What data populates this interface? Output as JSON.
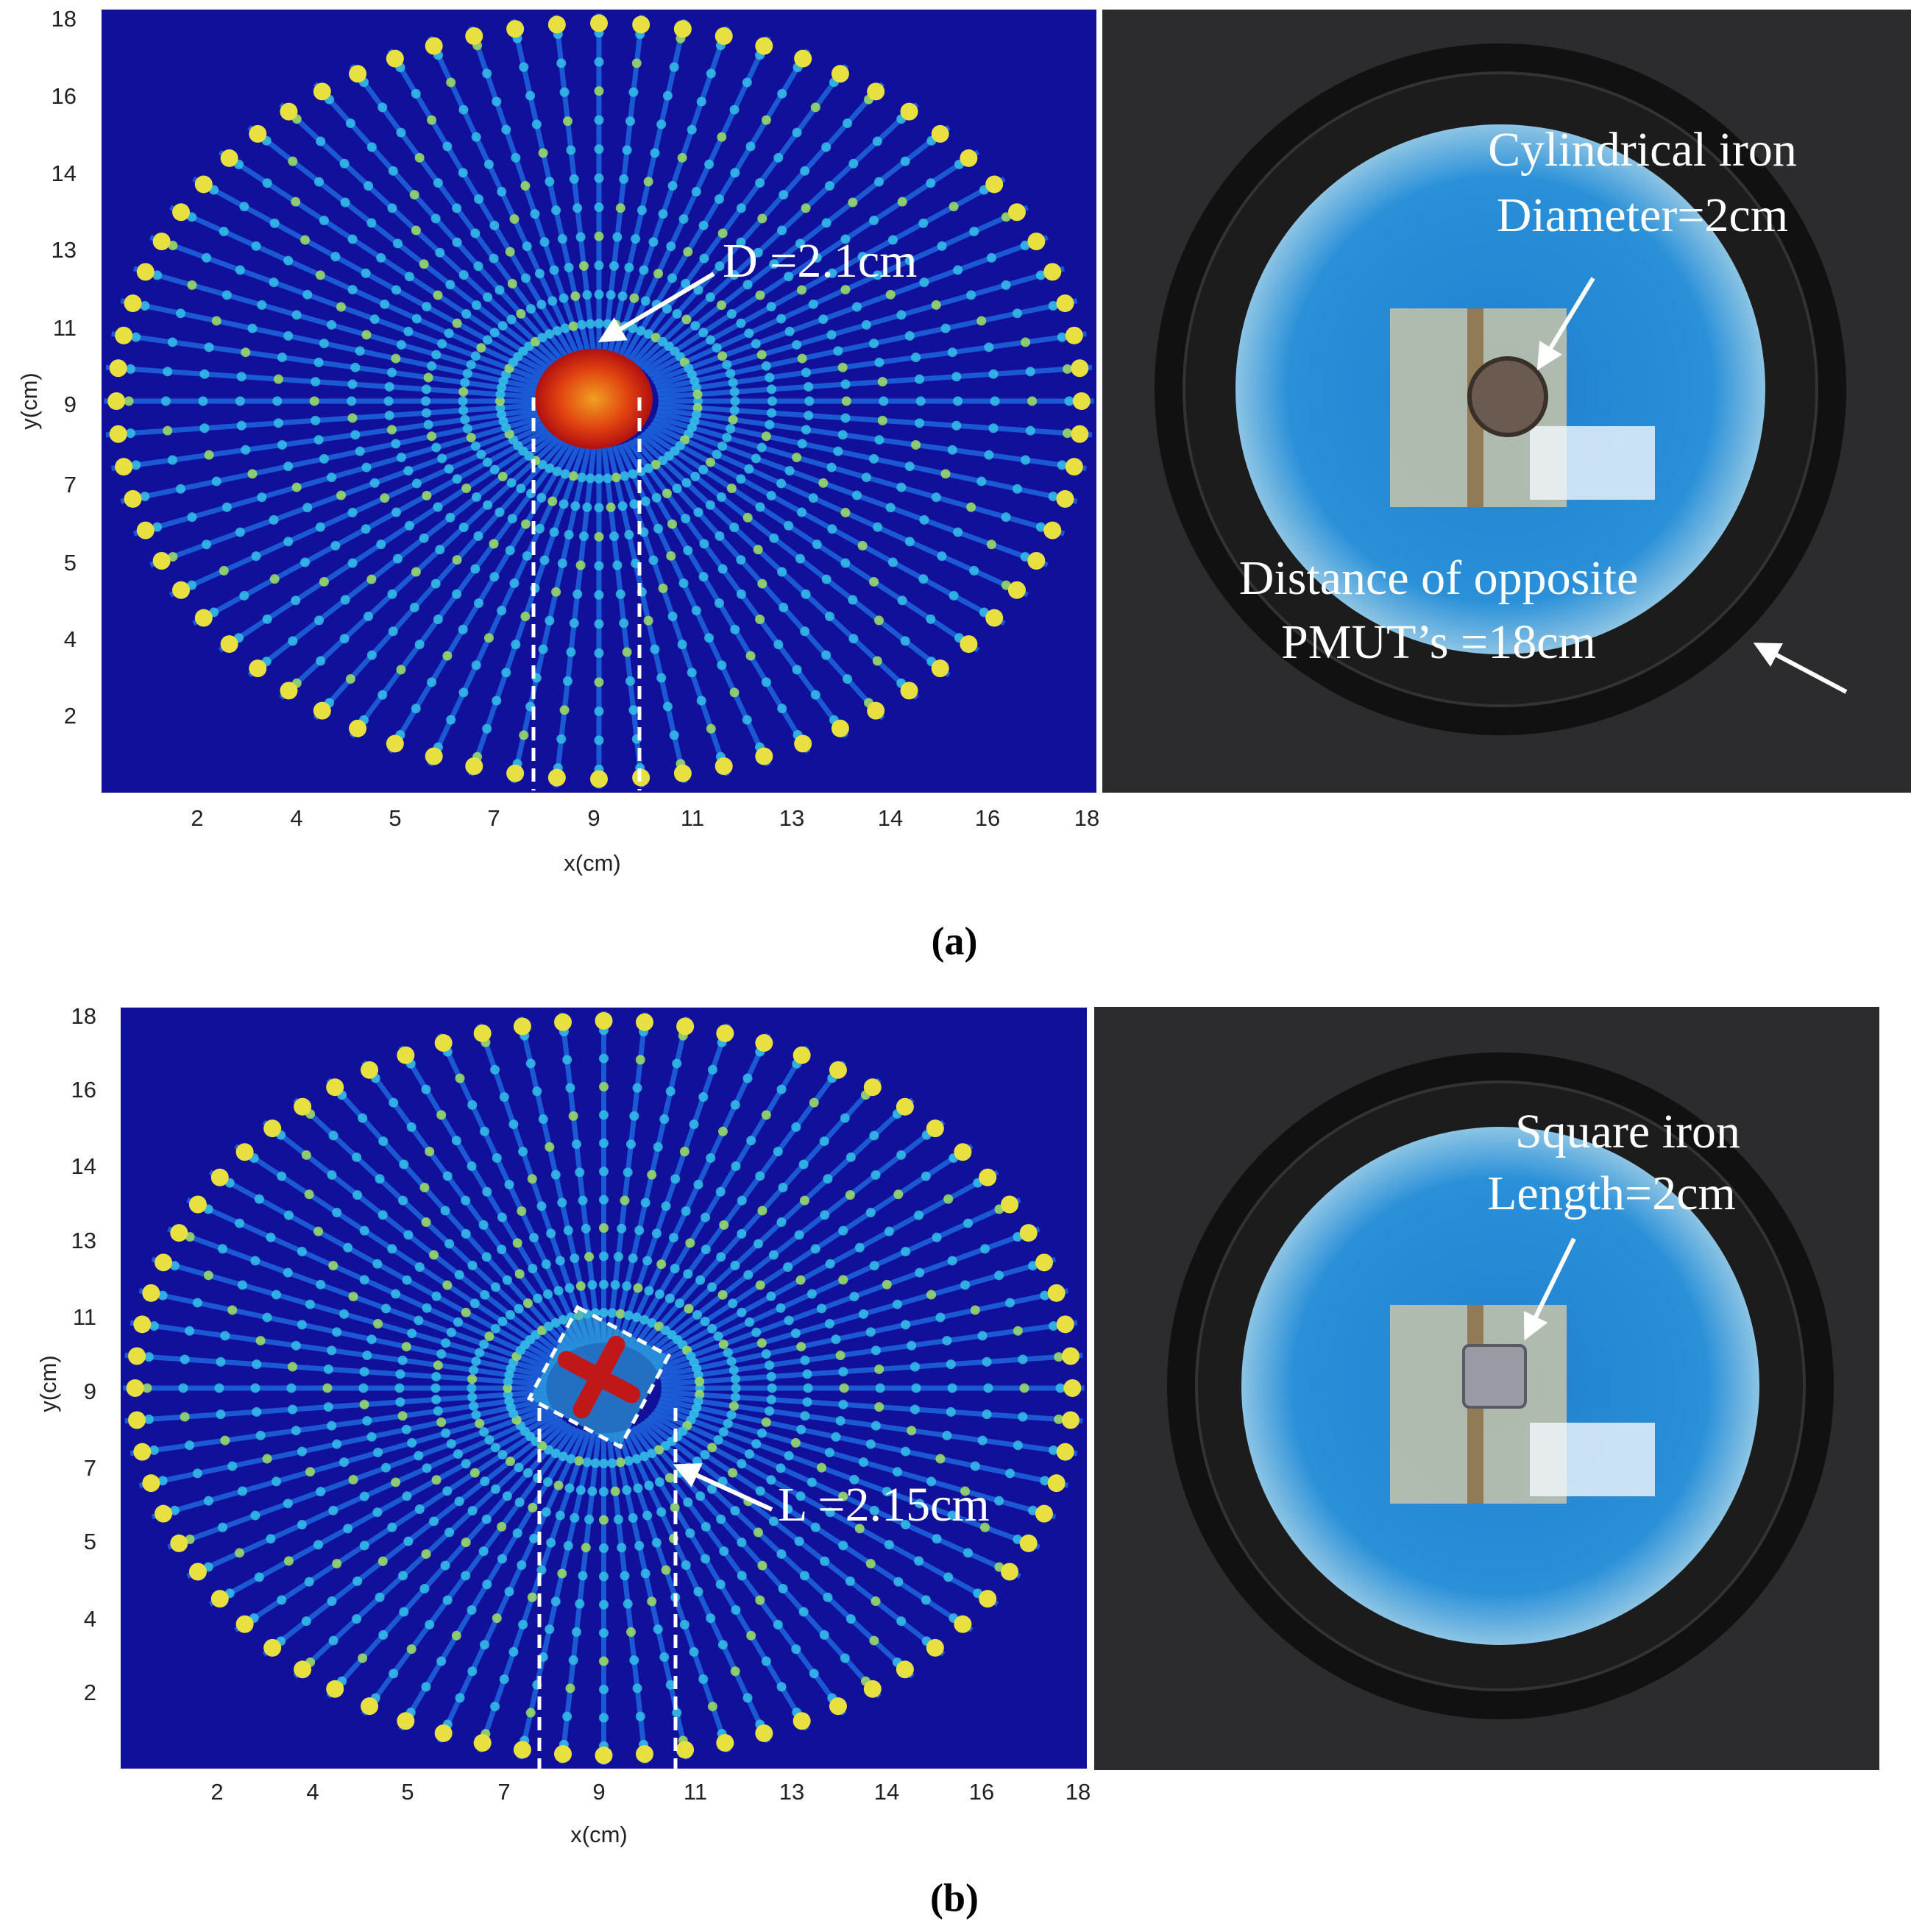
{
  "panels": [
    {
      "x_ticks": [
        "2",
        "4",
        "5",
        "7",
        "9",
        "11",
        "13",
        "14",
        "16",
        "18"
      ],
      "y_ticks": [
        "18",
        "16",
        "14",
        "13",
        "11",
        "9",
        "7",
        "5",
        "4",
        "2"
      ],
      "x_label": "x(cm)",
      "y_label": "y(cm)",
      "heatmap_annotation": "D =2.1cm",
      "photo_annotations": [
        "Cylindrical iron",
        "Diameter=2cm",
        "Distance of opposite",
        "PMUT’s =18cm"
      ],
      "caption": "(a)"
    },
    {
      "x_ticks": [
        "2",
        "4",
        "5",
        "7",
        "9",
        "11",
        "13",
        "14",
        "16",
        "18"
      ],
      "y_ticks": [
        "18",
        "16",
        "14",
        "13",
        "11",
        "9",
        "7",
        "5",
        "4",
        "2"
      ],
      "x_label": "x(cm)",
      "y_label": "y(cm)",
      "heatmap_annotation": "L =2.15cm",
      "photo_annotations": [
        "Square iron",
        "Length=2cm"
      ],
      "caption": "(b)"
    }
  ]
}
